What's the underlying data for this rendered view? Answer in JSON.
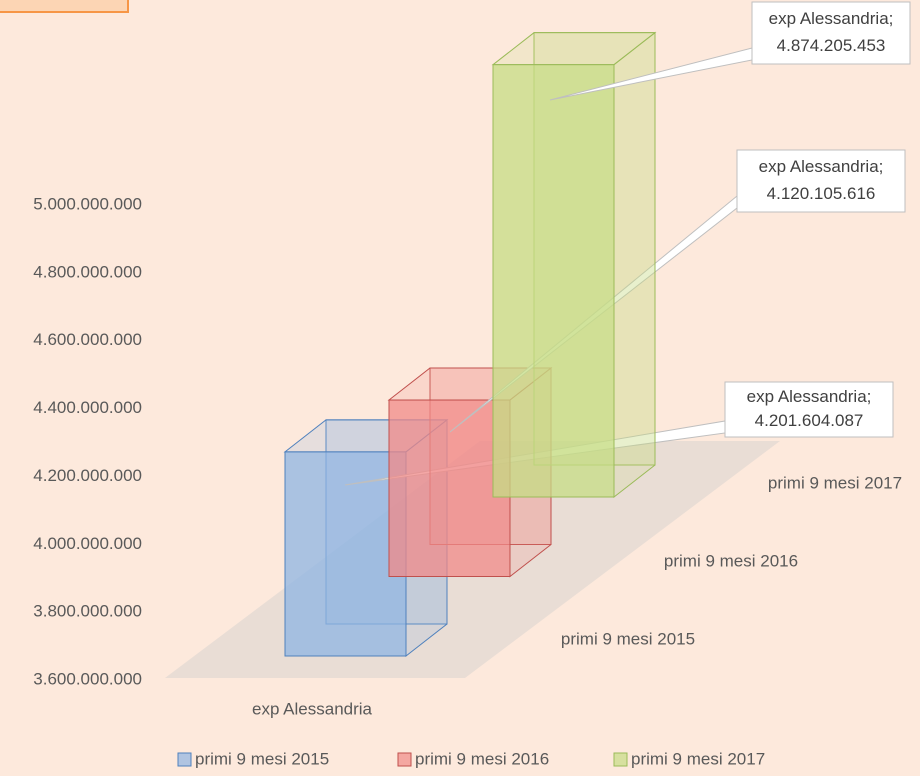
{
  "chart_data": {
    "type": "bar",
    "categories": [
      "exp Alessandria"
    ],
    "series": [
      {
        "name": "primi 9 mesi 2015",
        "color": "#8eb4e3",
        "stroke": "#4f81bd",
        "values": [
          4201604087
        ],
        "value_labels": [
          "4.201.604.087"
        ]
      },
      {
        "name": "primi 9 mesi 2016",
        "color": "#f08a88",
        "stroke": "#c0504d",
        "values": [
          4120105616
        ],
        "value_labels": [
          "4.120.105.616"
        ]
      },
      {
        "name": "primi 9 mesi 2017",
        "color": "#c6dc84",
        "stroke": "#9bbb59",
        "values": [
          4874205453
        ],
        "value_labels": [
          "4.874.205.453"
        ]
      }
    ],
    "ylim": [
      3600000000,
      5000000000
    ],
    "yticks": [
      {
        "value": 3600000000,
        "label": "3.600.000.000"
      },
      {
        "value": 3800000000,
        "label": "3.800.000.000"
      },
      {
        "value": 4000000000,
        "label": "4.000.000.000"
      },
      {
        "value": 4200000000,
        "label": "4.200.000.000"
      },
      {
        "value": 4400000000,
        "label": "4.400.000.000"
      },
      {
        "value": 4600000000,
        "label": "4.600.000.000"
      },
      {
        "value": 4800000000,
        "label": "4.800.000.000"
      },
      {
        "value": 5000000000,
        "label": "5.000.000.000"
      }
    ],
    "legend": "bottom"
  }
}
